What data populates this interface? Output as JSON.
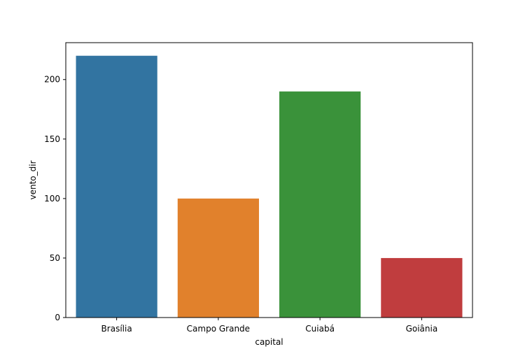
{
  "chart_data": {
    "type": "bar",
    "categories": [
      "Brasília",
      "Campo Grande",
      "Cuiabá",
      "Goiânia"
    ],
    "values": [
      220,
      100,
      190,
      50
    ],
    "colors": [
      "#3274a1",
      "#e1812c",
      "#3a923a",
      "#c03d3e"
    ],
    "title": "",
    "xlabel": "capital",
    "ylabel": "vento_dir",
    "ylim": [
      0,
      231
    ],
    "yticks": [
      0,
      50,
      100,
      150,
      200
    ],
    "grid": false,
    "legend": "none"
  }
}
